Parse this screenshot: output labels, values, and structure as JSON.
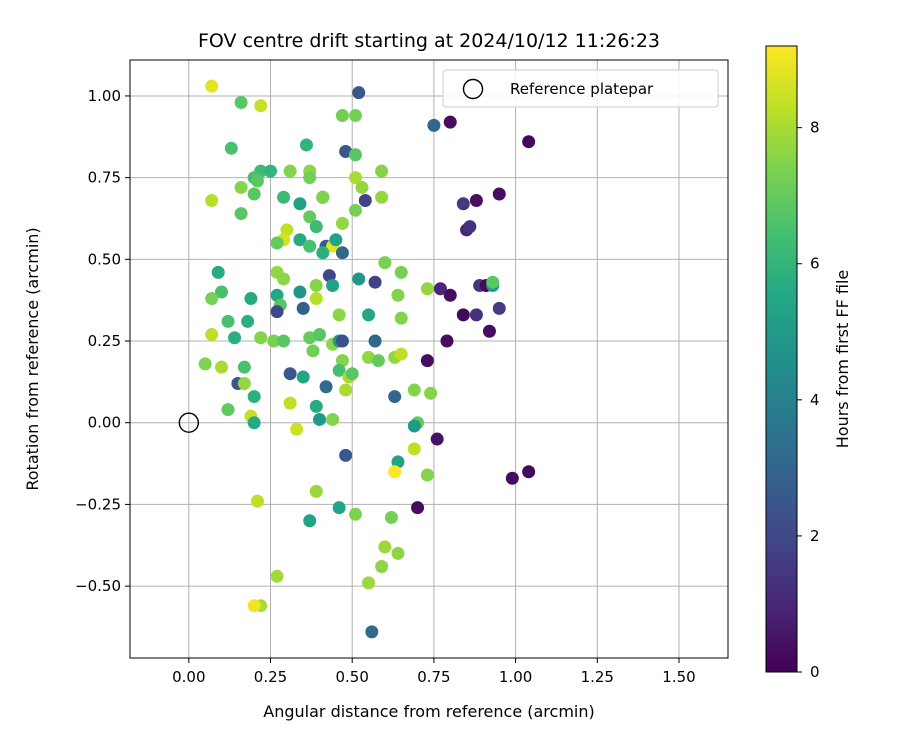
{
  "chart_data": {
    "type": "scatter",
    "title": "FOV centre drift starting at 2024/10/12 11:26:23",
    "xlabel": "Angular distance from reference (arcmin)",
    "ylabel": "Rotation from reference (arcmin)",
    "xlim": [
      -0.18,
      1.65
    ],
    "ylim": [
      -0.72,
      1.11
    ],
    "xticks": [
      0.0,
      0.25,
      0.5,
      0.75,
      1.0,
      1.25,
      1.5
    ],
    "xtick_labels": [
      "0.00",
      "0.25",
      "0.50",
      "0.75",
      "1.00",
      "1.25",
      "1.50"
    ],
    "yticks": [
      -0.5,
      -0.25,
      0.0,
      0.25,
      0.5,
      0.75,
      1.0
    ],
    "ytick_labels": [
      "−0.50",
      "−0.25",
      "0.00",
      "0.25",
      "0.50",
      "0.75",
      "1.00"
    ],
    "grid": true,
    "legend": {
      "placement": "top-right",
      "entries": [
        "Reference platepar"
      ]
    },
    "reference_point": {
      "x": 0.0,
      "y": 0.0
    },
    "colorbar": {
      "label": "Hours from first FF file",
      "colormap": "viridis",
      "range": [
        0,
        9.2
      ],
      "ticks": [
        0,
        2,
        4,
        6,
        8
      ],
      "tick_labels": [
        "0",
        "2",
        "4",
        "6",
        "8"
      ]
    },
    "points": [
      [
        0.07,
        1.03,
        8.8
      ],
      [
        0.16,
        0.98,
        6.8
      ],
      [
        0.22,
        0.97,
        8.4
      ],
      [
        0.52,
        1.01,
        2.5
      ],
      [
        0.8,
        0.92,
        0.3
      ],
      [
        0.75,
        0.91,
        3.0
      ],
      [
        1.04,
        0.86,
        0.2
      ],
      [
        0.36,
        0.85,
        6.0
      ],
      [
        0.13,
        0.84,
        6.5
      ],
      [
        0.47,
        0.94,
        7.2
      ],
      [
        0.51,
        0.94,
        7.3
      ],
      [
        0.48,
        0.83,
        2.5
      ],
      [
        0.51,
        0.82,
        6.8
      ],
      [
        0.59,
        0.77,
        7.5
      ],
      [
        0.22,
        0.77,
        6.2
      ],
      [
        0.25,
        0.77,
        6.0
      ],
      [
        0.31,
        0.77,
        7.5
      ],
      [
        0.37,
        0.77,
        7.6
      ],
      [
        0.2,
        0.75,
        6.5
      ],
      [
        0.21,
        0.74,
        6.8
      ],
      [
        0.37,
        0.75,
        7.2
      ],
      [
        0.51,
        0.75,
        8.0
      ],
      [
        0.16,
        0.72,
        7.5
      ],
      [
        0.2,
        0.7,
        6.8
      ],
      [
        0.29,
        0.69,
        6.2
      ],
      [
        0.41,
        0.69,
        2.3
      ],
      [
        0.41,
        0.69,
        7.4
      ],
      [
        0.53,
        0.72,
        7.7
      ],
      [
        0.54,
        0.68,
        1.8
      ],
      [
        0.59,
        0.69,
        7.7
      ],
      [
        0.07,
        0.68,
        8.2
      ],
      [
        0.95,
        0.7,
        0.3
      ],
      [
        0.88,
        0.68,
        0.4
      ],
      [
        0.84,
        0.67,
        1.5
      ],
      [
        0.34,
        0.67,
        5.2
      ],
      [
        0.16,
        0.64,
        6.8
      ],
      [
        0.51,
        0.65,
        7.3
      ],
      [
        0.37,
        0.63,
        7.0
      ],
      [
        0.3,
        0.59,
        8.3
      ],
      [
        0.39,
        0.6,
        6.2
      ],
      [
        0.47,
        0.61,
        7.7
      ],
      [
        0.85,
        0.59,
        1.0
      ],
      [
        0.86,
        0.6,
        1.3
      ],
      [
        0.29,
        0.56,
        8.6
      ],
      [
        0.34,
        0.56,
        5.6
      ],
      [
        0.27,
        0.55,
        7.0
      ],
      [
        0.37,
        0.54,
        6.5
      ],
      [
        0.42,
        0.54,
        2.5
      ],
      [
        0.44,
        0.54,
        8.8
      ],
      [
        0.45,
        0.56,
        5.3
      ],
      [
        0.47,
        0.52,
        3.0
      ],
      [
        0.41,
        0.52,
        5.8
      ],
      [
        0.6,
        0.49,
        7.3
      ],
      [
        0.65,
        0.46,
        7.3
      ],
      [
        0.09,
        0.46,
        5.6
      ],
      [
        0.27,
        0.46,
        7.7
      ],
      [
        0.29,
        0.44,
        7.6
      ],
      [
        0.43,
        0.45,
        2.0
      ],
      [
        0.44,
        0.42,
        5.2
      ],
      [
        0.52,
        0.44,
        4.8
      ],
      [
        0.39,
        0.42,
        7.5
      ],
      [
        0.34,
        0.4,
        4.8
      ],
      [
        0.57,
        0.43,
        1.8
      ],
      [
        0.77,
        0.41,
        1.0
      ],
      [
        0.73,
        0.41,
        7.7
      ],
      [
        0.8,
        0.39,
        0.3
      ],
      [
        0.89,
        0.42,
        1.5
      ],
      [
        0.91,
        0.42,
        0.2
      ],
      [
        0.93,
        0.42,
        5.0
      ],
      [
        0.93,
        0.43,
        6.8
      ],
      [
        0.64,
        0.39,
        7.5
      ],
      [
        0.1,
        0.4,
        6.5
      ],
      [
        0.07,
        0.38,
        7.3
      ],
      [
        0.19,
        0.38,
        5.6
      ],
      [
        0.27,
        0.39,
        5.5
      ],
      [
        0.39,
        0.38,
        8.2
      ],
      [
        0.28,
        0.36,
        6.8
      ],
      [
        0.27,
        0.34,
        2.0
      ],
      [
        0.46,
        0.33,
        7.6
      ],
      [
        0.35,
        0.35,
        2.8
      ],
      [
        0.55,
        0.33,
        5.5
      ],
      [
        0.65,
        0.32,
        7.5
      ],
      [
        0.84,
        0.33,
        0.2
      ],
      [
        0.88,
        0.33,
        1.3
      ],
      [
        0.95,
        0.35,
        1.6
      ],
      [
        0.92,
        0.28,
        0.3
      ],
      [
        0.12,
        0.31,
        6.5
      ],
      [
        0.18,
        0.31,
        5.8
      ],
      [
        0.07,
        0.27,
        8.3
      ],
      [
        0.14,
        0.26,
        5.8
      ],
      [
        0.22,
        0.26,
        7.5
      ],
      [
        0.26,
        0.25,
        7.3
      ],
      [
        0.29,
        0.25,
        6.8
      ],
      [
        0.37,
        0.26,
        7.0
      ],
      [
        0.4,
        0.27,
        6.8
      ],
      [
        0.44,
        0.24,
        7.6
      ],
      [
        0.46,
        0.25,
        5.0
      ],
      [
        0.47,
        0.25,
        2.3
      ],
      [
        0.57,
        0.25,
        3.0
      ],
      [
        0.79,
        0.25,
        0.3
      ],
      [
        0.38,
        0.22,
        7.2
      ],
      [
        0.47,
        0.19,
        7.5
      ],
      [
        0.55,
        0.2,
        7.7
      ],
      [
        0.58,
        0.19,
        7.0
      ],
      [
        0.63,
        0.2,
        7.7
      ],
      [
        0.65,
        0.21,
        8.3
      ],
      [
        0.73,
        0.19,
        0.3
      ],
      [
        0.05,
        0.18,
        7.4
      ],
      [
        0.17,
        0.17,
        6.5
      ],
      [
        0.1,
        0.17,
        8.0
      ],
      [
        0.46,
        0.16,
        6.4
      ],
      [
        0.49,
        0.14,
        8.0
      ],
      [
        0.5,
        0.15,
        6.8
      ],
      [
        0.31,
        0.15,
        2.5
      ],
      [
        0.35,
        0.14,
        5.5
      ],
      [
        0.15,
        0.12,
        2.5
      ],
      [
        0.17,
        0.12,
        7.7
      ],
      [
        0.42,
        0.11,
        3.2
      ],
      [
        0.48,
        0.1,
        8.0
      ],
      [
        0.69,
        0.1,
        7.5
      ],
      [
        0.74,
        0.09,
        7.5
      ],
      [
        0.2,
        0.08,
        5.8
      ],
      [
        0.63,
        0.08,
        3.0
      ],
      [
        0.12,
        0.04,
        6.9
      ],
      [
        0.31,
        0.06,
        8.3
      ],
      [
        0.39,
        0.05,
        5.6
      ],
      [
        0.4,
        0.01,
        5.0
      ],
      [
        0.44,
        0.01,
        7.5
      ],
      [
        0.19,
        0.02,
        8.4
      ],
      [
        0.2,
        0.0,
        5.6
      ],
      [
        0.33,
        -0.02,
        8.5
      ],
      [
        0.7,
        0.0,
        7.0
      ],
      [
        0.69,
        -0.01,
        5.0
      ],
      [
        0.76,
        -0.05,
        0.5
      ],
      [
        0.48,
        -0.1,
        2.5
      ],
      [
        0.64,
        -0.12,
        5.3
      ],
      [
        0.69,
        -0.08,
        8.3
      ],
      [
        0.63,
        -0.15,
        9.2
      ],
      [
        0.73,
        -0.16,
        7.5
      ],
      [
        0.99,
        -0.17,
        0.3
      ],
      [
        1.04,
        -0.15,
        0.2
      ],
      [
        0.21,
        -0.24,
        8.3
      ],
      [
        0.39,
        -0.21,
        7.8
      ],
      [
        0.46,
        -0.26,
        5.4
      ],
      [
        0.37,
        -0.3,
        5.4
      ],
      [
        0.51,
        -0.28,
        7.4
      ],
      [
        0.62,
        -0.29,
        7.3
      ],
      [
        0.7,
        -0.26,
        0.3
      ],
      [
        0.6,
        -0.38,
        7.8
      ],
      [
        0.64,
        -0.4,
        7.6
      ],
      [
        0.59,
        -0.44,
        7.6
      ],
      [
        0.55,
        -0.49,
        7.8
      ],
      [
        0.27,
        -0.47,
        7.9
      ],
      [
        0.22,
        -0.56,
        8.0
      ],
      [
        0.2,
        -0.56,
        9.0
      ],
      [
        0.56,
        -0.64,
        3.2
      ]
    ]
  }
}
